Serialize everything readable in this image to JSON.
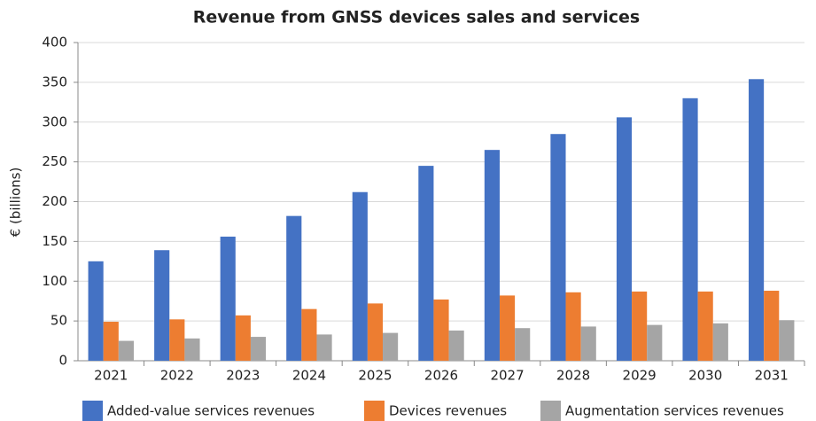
{
  "chart_data": {
    "type": "bar",
    "title": "Revenue from GNSS devices sales and services",
    "y_label": "€ (billions)",
    "categories": [
      "2021",
      "2022",
      "2023",
      "2024",
      "2025",
      "2026",
      "2027",
      "2028",
      "2029",
      "2030",
      "2031"
    ],
    "series": [
      {
        "name": "Added-value services revenues",
        "color": "#4472c4",
        "values": [
          125,
          139,
          156,
          182,
          212,
          245,
          265,
          285,
          306,
          330,
          354
        ]
      },
      {
        "name": "Devices revenues",
        "color": "#ed7d31",
        "values": [
          49,
          52,
          57,
          65,
          72,
          77,
          82,
          86,
          87,
          87,
          88
        ]
      },
      {
        "name": "Augmentation services revenues",
        "color": "#a5a5a5",
        "values": [
          25,
          28,
          30,
          33,
          35,
          38,
          41,
          43,
          45,
          47,
          51
        ]
      }
    ],
    "ylim": [
      0,
      400
    ],
    "yticks": [
      0,
      50,
      100,
      150,
      200,
      250,
      300,
      350,
      400
    ],
    "grid": true,
    "legend": "bottom"
  }
}
